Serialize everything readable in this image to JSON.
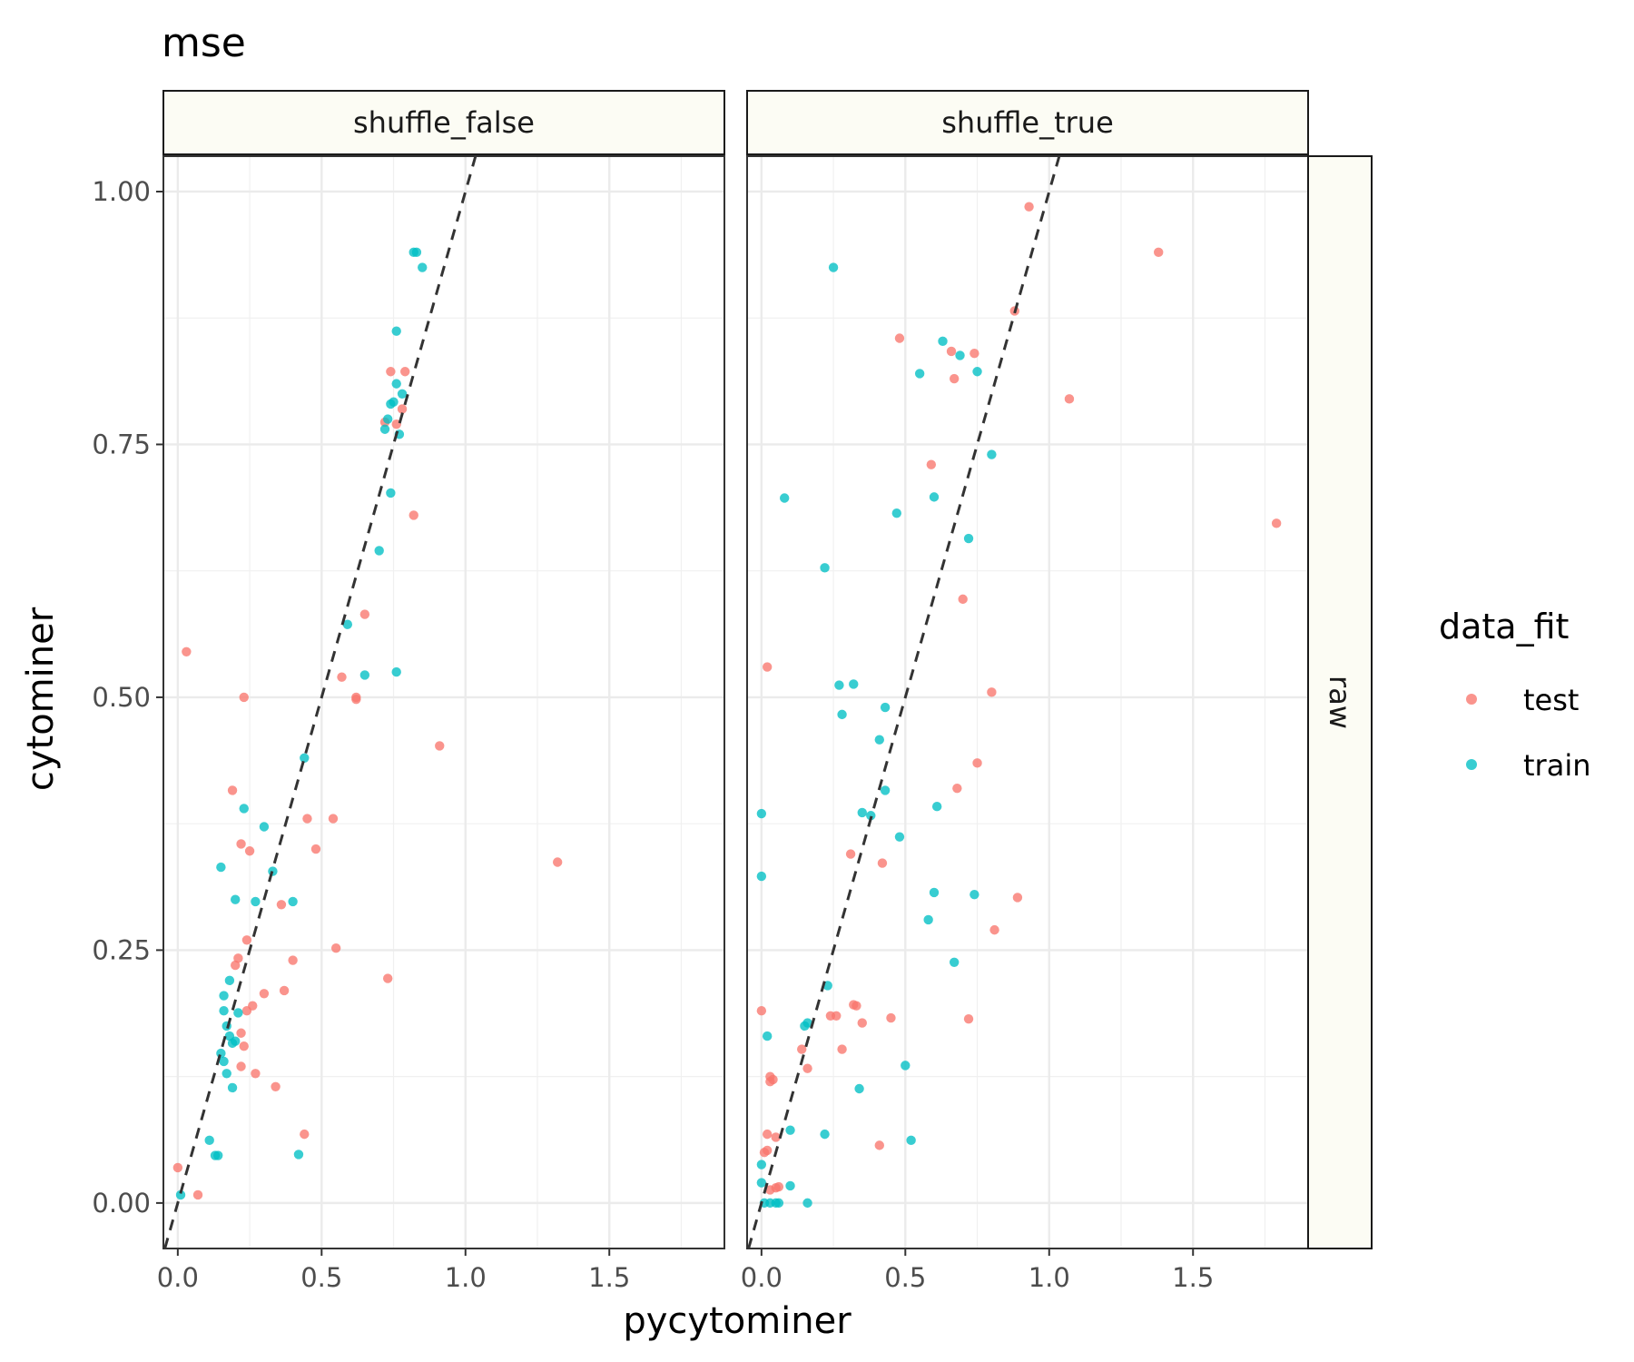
{
  "chart_data": {
    "type": "scatter",
    "title": "mse",
    "xlabel": "pycytominer",
    "ylabel": "cytominer",
    "xlim": [
      -0.05,
      1.9
    ],
    "ylim": [
      -0.045,
      1.035
    ],
    "x_ticks": [
      0.0,
      0.5,
      1.0,
      1.5
    ],
    "x_tick_labels": [
      "0.0",
      "0.5",
      "1.0",
      "1.5"
    ],
    "y_ticks": [
      0.0,
      0.25,
      0.5,
      0.75,
      1.0
    ],
    "y_tick_labels": [
      "0.00",
      "0.25",
      "0.50",
      "0.75",
      "1.00"
    ],
    "grid": true,
    "reference_line": {
      "slope": 1,
      "intercept": 0,
      "style": "dashed",
      "color": "#333333"
    },
    "facet_row_label": "raw",
    "legend": {
      "title": "data_fit",
      "placement": "right",
      "entries": [
        {
          "label": "test",
          "color": "#F8766D"
        },
        {
          "label": "train",
          "color": "#00BFC4"
        }
      ]
    },
    "facets": [
      {
        "label": "shuffle_false",
        "series": [
          {
            "name": "test",
            "color": "#F8766D",
            "points": [
              [
                0.0,
                0.035
              ],
              [
                0.07,
                0.008
              ],
              [
                0.03,
                0.545
              ],
              [
                0.19,
                0.408
              ],
              [
                0.23,
                0.5
              ],
              [
                0.22,
                0.355
              ],
              [
                0.25,
                0.348
              ],
              [
                0.24,
                0.26
              ],
              [
                0.2,
                0.235
              ],
              [
                0.21,
                0.242
              ],
              [
                0.24,
                0.19
              ],
              [
                0.26,
                0.195
              ],
              [
                0.3,
                0.207
              ],
              [
                0.37,
                0.21
              ],
              [
                0.36,
                0.295
              ],
              [
                0.4,
                0.24
              ],
              [
                0.22,
                0.168
              ],
              [
                0.23,
                0.155
              ],
              [
                0.22,
                0.135
              ],
              [
                0.27,
                0.128
              ],
              [
                0.34,
                0.115
              ],
              [
                0.44,
                0.068
              ],
              [
                0.45,
                0.38
              ],
              [
                0.48,
                0.35
              ],
              [
                0.54,
                0.38
              ],
              [
                0.55,
                0.252
              ],
              [
                0.57,
                0.52
              ],
              [
                0.62,
                0.5
              ],
              [
                0.62,
                0.498
              ],
              [
                0.65,
                0.582
              ],
              [
                0.73,
                0.222
              ],
              [
                0.82,
                0.68
              ],
              [
                0.91,
                0.452
              ],
              [
                1.32,
                0.337
              ],
              [
                0.72,
                0.772
              ],
              [
                0.74,
                0.822
              ],
              [
                0.79,
                0.822
              ],
              [
                0.76,
                0.77
              ],
              [
                0.78,
                0.785
              ]
            ]
          },
          {
            "name": "train",
            "color": "#00BFC4",
            "points": [
              [
                0.01,
                0.008
              ],
              [
                0.11,
                0.062
              ],
              [
                0.13,
                0.047
              ],
              [
                0.14,
                0.047
              ],
              [
                0.15,
                0.148
              ],
              [
                0.17,
                0.128
              ],
              [
                0.16,
                0.14
              ],
              [
                0.19,
                0.114
              ],
              [
                0.18,
                0.165
              ],
              [
                0.19,
                0.158
              ],
              [
                0.2,
                0.16
              ],
              [
                0.17,
                0.175
              ],
              [
                0.16,
                0.19
              ],
              [
                0.16,
                0.205
              ],
              [
                0.18,
                0.22
              ],
              [
                0.21,
                0.188
              ],
              [
                0.15,
                0.332
              ],
              [
                0.2,
                0.3
              ],
              [
                0.23,
                0.39
              ],
              [
                0.27,
                0.298
              ],
              [
                0.3,
                0.372
              ],
              [
                0.33,
                0.328
              ],
              [
                0.4,
                0.298
              ],
              [
                0.42,
                0.048
              ],
              [
                0.44,
                0.44
              ],
              [
                0.59,
                0.572
              ],
              [
                0.65,
                0.522
              ],
              [
                0.7,
                0.645
              ],
              [
                0.74,
                0.702
              ],
              [
                0.76,
                0.525
              ],
              [
                0.72,
                0.765
              ],
              [
                0.73,
                0.775
              ],
              [
                0.74,
                0.79
              ],
              [
                0.75,
                0.792
              ],
              [
                0.77,
                0.76
              ],
              [
                0.78,
                0.8
              ],
              [
                0.76,
                0.81
              ],
              [
                0.76,
                0.862
              ],
              [
                0.82,
                0.94
              ],
              [
                0.83,
                0.94
              ],
              [
                0.85,
                0.925
              ]
            ]
          }
        ]
      },
      {
        "label": "shuffle_true",
        "series": [
          {
            "name": "test",
            "color": "#F8766D",
            "points": [
              [
                0.0,
                0.19
              ],
              [
                0.01,
                0.05
              ],
              [
                0.02,
                0.052
              ],
              [
                0.02,
                0.068
              ],
              [
                0.03,
                0.125
              ],
              [
                0.03,
                0.12
              ],
              [
                0.04,
                0.122
              ],
              [
                0.03,
                0.013
              ],
              [
                0.05,
                0.065
              ],
              [
                0.05,
                0.015
              ],
              [
                0.06,
                0.016
              ],
              [
                0.02,
                0.53
              ],
              [
                0.14,
                0.152
              ],
              [
                0.16,
                0.133
              ],
              [
                0.24,
                0.185
              ],
              [
                0.26,
                0.185
              ],
              [
                0.28,
                0.152
              ],
              [
                0.31,
                0.345
              ],
              [
                0.32,
                0.196
              ],
              [
                0.33,
                0.195
              ],
              [
                0.35,
                0.178
              ],
              [
                0.41,
                0.057
              ],
              [
                0.42,
                0.336
              ],
              [
                0.45,
                0.183
              ],
              [
                0.48,
                0.855
              ],
              [
                0.59,
                0.73
              ],
              [
                0.66,
                0.842
              ],
              [
                0.67,
                0.815
              ],
              [
                0.68,
                0.41
              ],
              [
                0.7,
                0.597
              ],
              [
                0.72,
                0.182
              ],
              [
                0.74,
                0.84
              ],
              [
                0.75,
                0.435
              ],
              [
                0.8,
                0.505
              ],
              [
                0.81,
                0.27
              ],
              [
                0.88,
                0.882
              ],
              [
                0.89,
                0.302
              ],
              [
                0.93,
                0.985
              ],
              [
                1.07,
                0.795
              ],
              [
                1.38,
                0.94
              ],
              [
                1.79,
                0.672
              ]
            ]
          },
          {
            "name": "train",
            "color": "#00BFC4",
            "points": [
              [
                0.0,
                0.385
              ],
              [
                0.0,
                0.323
              ],
              [
                0.0,
                0.038
              ],
              [
                0.0,
                0.02
              ],
              [
                0.01,
                0.0
              ],
              [
                0.02,
                0.165
              ],
              [
                0.03,
                0.0
              ],
              [
                0.05,
                0.0
              ],
              [
                0.06,
                0.0
              ],
              [
                0.1,
                0.017
              ],
              [
                0.1,
                0.072
              ],
              [
                0.08,
                0.697
              ],
              [
                0.15,
                0.175
              ],
              [
                0.16,
                0.178
              ],
              [
                0.16,
                0.0
              ],
              [
                0.22,
                0.628
              ],
              [
                0.22,
                0.068
              ],
              [
                0.23,
                0.215
              ],
              [
                0.25,
                0.925
              ],
              [
                0.27,
                0.512
              ],
              [
                0.28,
                0.483
              ],
              [
                0.32,
                0.513
              ],
              [
                0.34,
                0.113
              ],
              [
                0.35,
                0.386
              ],
              [
                0.38,
                0.383
              ],
              [
                0.41,
                0.458
              ],
              [
                0.43,
                0.49
              ],
              [
                0.43,
                0.408
              ],
              [
                0.47,
                0.682
              ],
              [
                0.48,
                0.362
              ],
              [
                0.5,
                0.136
              ],
              [
                0.52,
                0.062
              ],
              [
                0.55,
                0.82
              ],
              [
                0.58,
                0.28
              ],
              [
                0.6,
                0.698
              ],
              [
                0.6,
                0.307
              ],
              [
                0.61,
                0.392
              ],
              [
                0.63,
                0.852
              ],
              [
                0.67,
                0.238
              ],
              [
                0.69,
                0.838
              ],
              [
                0.72,
                0.657
              ],
              [
                0.74,
                0.305
              ],
              [
                0.75,
                0.822
              ],
              [
                0.8,
                0.74
              ]
            ]
          }
        ]
      }
    ]
  }
}
